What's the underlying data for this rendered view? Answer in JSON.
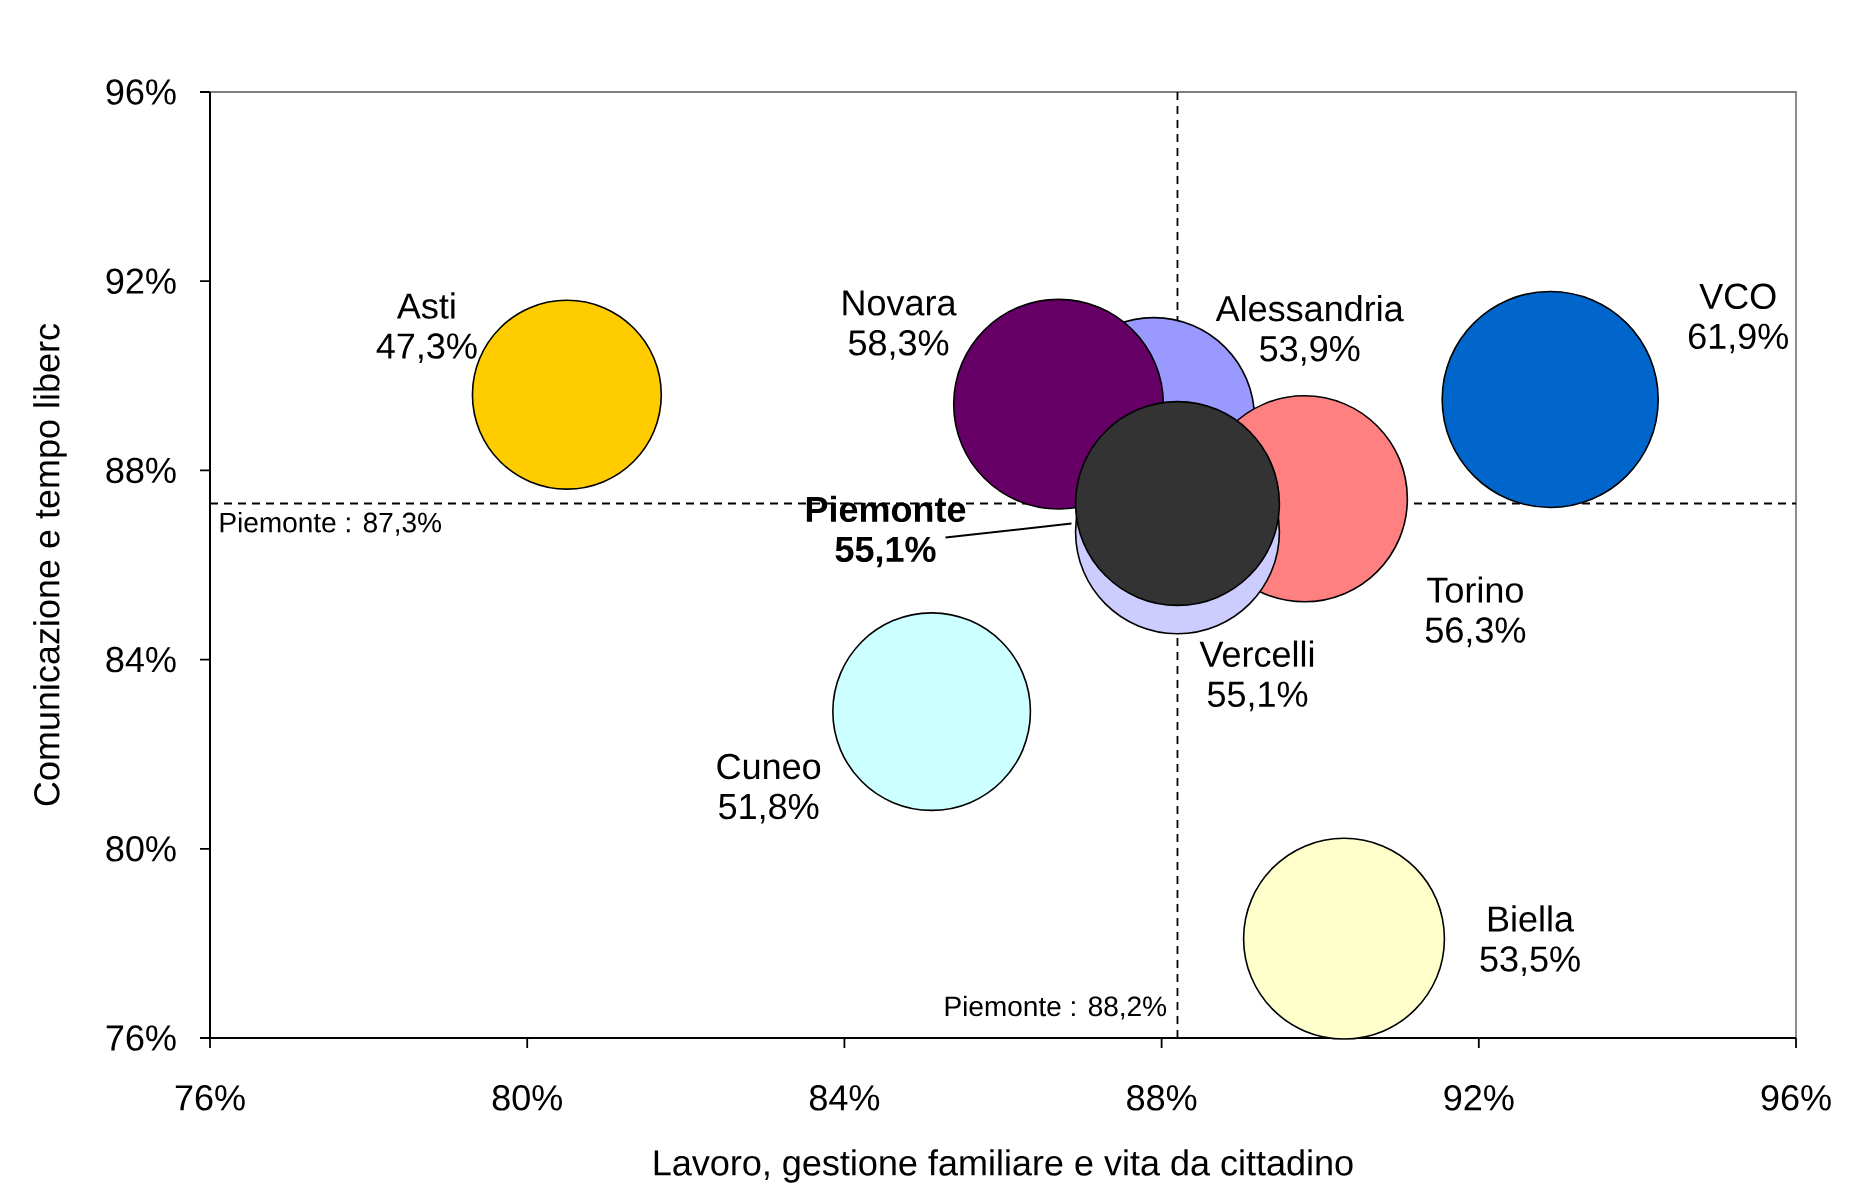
{
  "chart_data": {
    "type": "bubble",
    "xlabel": "Lavoro, gestione familiare e vita da cittadino",
    "ylabel": "Comunicazione e tempo liberc",
    "xlim": [
      76,
      96
    ],
    "ylim": [
      76,
      96
    ],
    "xticks": [
      {
        "value": 76,
        "label": "76%"
      },
      {
        "value": 80,
        "label": "80%"
      },
      {
        "value": 84,
        "label": "84%"
      },
      {
        "value": 88,
        "label": "88%"
      },
      {
        "value": 92,
        "label": "92%"
      },
      {
        "value": 96,
        "label": "96%"
      }
    ],
    "yticks": [
      {
        "value": 76,
        "label": "76%"
      },
      {
        "value": 80,
        "label": "80%"
      },
      {
        "value": 84,
        "label": "84%"
      },
      {
        "value": 88,
        "label": "88%"
      },
      {
        "value": 92,
        "label": "92%"
      },
      {
        "value": 96,
        "label": "96%"
      }
    ],
    "series": [
      {
        "name": "Alessandria",
        "color": "#9999ff",
        "x": [
          87.9
        ],
        "values": [
          89.1
        ],
        "sizes": [
          53.9
        ],
        "value_labels": [
          "53,9%"
        ]
      },
      {
        "name": "Asti",
        "color": "#ffcc00",
        "x": [
          80.5
        ],
        "values": [
          89.6
        ],
        "sizes": [
          47.3
        ],
        "value_labels": [
          "47,3%"
        ]
      },
      {
        "name": "Biella",
        "color": "#ffffcc",
        "x": [
          90.3
        ],
        "values": [
          78.1
        ],
        "sizes": [
          53.5
        ],
        "value_labels": [
          "53,5%"
        ]
      },
      {
        "name": "Cuneo",
        "color": "#ccffff",
        "x": [
          85.1
        ],
        "values": [
          82.9
        ],
        "sizes": [
          51.8
        ],
        "value_labels": [
          "51,8%"
        ]
      },
      {
        "name": "Novara",
        "color": "#660066",
        "x": [
          86.7
        ],
        "values": [
          89.4
        ],
        "sizes": [
          58.3
        ],
        "value_labels": [
          "58,3%"
        ]
      },
      {
        "name": "Torino",
        "color": "#ff8080",
        "x": [
          89.8
        ],
        "values": [
          87.4
        ],
        "sizes": [
          56.3
        ],
        "value_labels": [
          "56,3%"
        ]
      },
      {
        "name": "VCO",
        "color": "#0066cc",
        "x": [
          92.9
        ],
        "values": [
          89.5
        ],
        "sizes": [
          61.9
        ],
        "value_labels": [
          "61,9%"
        ]
      },
      {
        "name": "Vercelli",
        "color": "#ccccff",
        "x": [
          88.2
        ],
        "values": [
          86.7
        ],
        "sizes": [
          55.1
        ],
        "value_labels": [
          "55,1%"
        ]
      },
      {
        "name": "Piemonte",
        "color": "#333333",
        "x": [
          88.2
        ],
        "values": [
          87.3
        ],
        "sizes": [
          55.1
        ],
        "value_labels": [
          "55,1%"
        ]
      }
    ],
    "ref_lines": [
      {
        "axis": "x",
        "value": 88.2,
        "label": "Piemonte : 88,2%",
        "line_style": "dashed",
        "color": "#000000"
      },
      {
        "axis": "y",
        "value": 87.3,
        "label": "Piemonte : 87,3%",
        "line_style": "dashed",
        "color": "#000000"
      }
    ]
  }
}
